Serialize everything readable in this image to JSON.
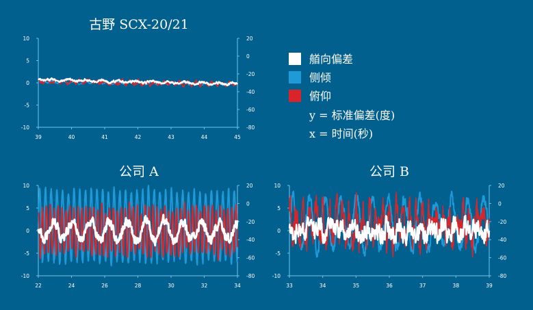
{
  "colors": {
    "background": "#02608e",
    "axis": "#6fc3e8",
    "yaw": "#ffffff",
    "roll": "#1e9ad8",
    "pitch": "#d9252a"
  },
  "legend": {
    "items": [
      {
        "label": "艏向偏差",
        "color": "#ffffff"
      },
      {
        "label": "侧倾",
        "color": "#1e9ad8"
      },
      {
        "label": "俯仰",
        "color": "#d9252a"
      }
    ],
    "note_y": "y = 标准偏差(度)",
    "note_x": "x = 时间(秒)"
  },
  "chart_data": [
    {
      "type": "line",
      "title": "古野 SCX-20/21",
      "xlim": [
        39,
        45
      ],
      "x_ticks": [
        "39",
        "40",
        "41",
        "42",
        "43",
        "44",
        "45"
      ],
      "ylim": [
        -10,
        10
      ],
      "y_ticks": [
        "10",
        "5",
        "0",
        "-5",
        "-10"
      ],
      "y2lim": [
        -80,
        20
      ],
      "y2_ticks": [
        "20",
        "0",
        "-20",
        "-40",
        "-60",
        "-80"
      ],
      "series": [
        {
          "key": "roll",
          "color": "#1e9ad8",
          "base": 0.2,
          "amp": 0.25,
          "freq": 3.0,
          "noise": 0.15,
          "trend": -0.08,
          "width": 1.5
        },
        {
          "key": "pitch",
          "color": "#d9252a",
          "base": 0.3,
          "amp": 0.35,
          "freq": 4.0,
          "noise": 0.35,
          "trend": -0.1,
          "width": 1.6
        },
        {
          "key": "yaw",
          "color": "#ffffff",
          "base": 0.7,
          "amp": 0.2,
          "freq": 2.0,
          "noise": 0.2,
          "trend": -0.16,
          "width": 2.2
        }
      ]
    },
    {
      "type": "line",
      "title": "公司 A",
      "xlim": [
        22,
        34
      ],
      "x_ticks": [
        "22",
        "24",
        "26",
        "28",
        "30",
        "32",
        "34"
      ],
      "ylim": [
        -10,
        10
      ],
      "y_ticks": [
        "10",
        "5",
        "0",
        "-5",
        "-10"
      ],
      "y2lim": [
        -80,
        20
      ],
      "y2_ticks": [
        "20",
        "0",
        "-20",
        "-40",
        "-60",
        "-80"
      ],
      "series": [
        {
          "key": "roll",
          "color": "#1e9ad8",
          "base": 1.0,
          "amp": 8.0,
          "freq": 2.9,
          "noise": 0.6,
          "trend": 0,
          "width": 2.0
        },
        {
          "key": "pitch",
          "color": "#d9252a",
          "base": 0.0,
          "amp": 5.0,
          "freq": 4.2,
          "noise": 1.0,
          "trend": 0,
          "width": 1.8
        },
        {
          "key": "yaw",
          "color": "#ffffff",
          "base": 0.0,
          "amp": 2.0,
          "freq": 0.9,
          "noise": 0.9,
          "trend": 0,
          "width": 3.0
        }
      ]
    },
    {
      "type": "line",
      "title": "公司 B",
      "xlim": [
        33,
        39
      ],
      "x_ticks": [
        "33",
        "34",
        "35",
        "36",
        "37",
        "38",
        "39"
      ],
      "ylim": [
        -10,
        10
      ],
      "y_ticks": [
        "10",
        "5",
        "0",
        "-5",
        "-10"
      ],
      "y2lim": [
        -80,
        20
      ],
      "y2_ticks": [
        "20",
        "0",
        "-20",
        "-40",
        "-60",
        "-80"
      ],
      "series": [
        {
          "key": "roll",
          "color": "#1e9ad8",
          "base": 1.5,
          "amp": 5.5,
          "freq": 2.1,
          "noise": 1.2,
          "trend": 0,
          "width": 2.0
        },
        {
          "key": "pitch",
          "color": "#d9252a",
          "base": 1.5,
          "amp": 3.0,
          "freq": 5.0,
          "noise": 2.8,
          "trend": 0,
          "width": 1.6
        },
        {
          "key": "yaw",
          "color": "#ffffff",
          "base": 0.0,
          "amp": 1.0,
          "freq": 3.0,
          "noise": 1.8,
          "trend": 0,
          "width": 2.4
        }
      ]
    }
  ]
}
